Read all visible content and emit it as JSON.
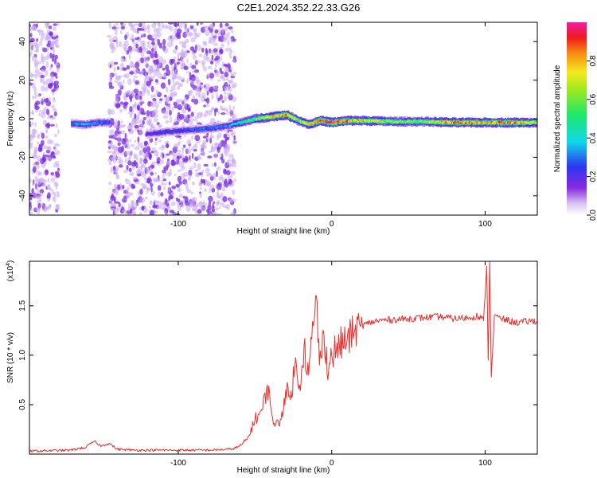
{
  "title": "C2E1.2024.352.22.33.G26",
  "colors": {
    "snr_line": "#e8302c",
    "axis": "#000000",
    "noise": "#7a2be0",
    "noise_light": "#c9a9f2"
  },
  "chart_data": [
    {
      "type": "heatmap",
      "xlabel": "Height of straight line (km)",
      "ylabel": "Frequency (Hz)",
      "xlim": [
        -197,
        134
      ],
      "ylim": [
        -50,
        50
      ],
      "x_ticks": [
        -100,
        0,
        100
      ],
      "x_tick_labels": [
        "-100",
        "0",
        "100"
      ],
      "y_ticks": [
        -40,
        -20,
        0,
        20,
        40
      ],
      "y_tick_labels": [
        "-40",
        "-20",
        "0",
        "20",
        "40"
      ],
      "colorbar": {
        "label": "Normalized spectral amplitude",
        "range": [
          0.0,
          1.0
        ],
        "ticks": [
          0.0,
          0.2,
          0.4,
          0.6,
          0.8
        ],
        "tick_labels": [
          "0.0",
          "0.2",
          "0.4",
          "0.6",
          "0.8"
        ],
        "colormap": "rainbow (white-purple-blue-cyan-green-yellow-red-magenta)"
      },
      "noise_regions": [
        [
          -197,
          -178
        ],
        [
          -145,
          -63
        ]
      ],
      "signal_ridge": {
        "x": [
          -170,
          -162,
          -152,
          -145,
          -122,
          -110,
          -95,
          -80,
          -70,
          -60,
          -50,
          -40,
          -30,
          -22,
          -15,
          -8,
          0,
          10,
          20,
          40,
          60,
          80,
          100,
          120,
          134
        ],
        "frequency": [
          -2.5,
          -3,
          -2,
          -2,
          -8,
          -7,
          -6,
          -5,
          -4,
          -2,
          0,
          1,
          2,
          -1,
          -3,
          -1,
          -2,
          -1,
          -1,
          -1.5,
          -1.5,
          -2,
          -2,
          -2,
          -2
        ],
        "amplitude": [
          0.3,
          0.35,
          0.3,
          0.25,
          0.2,
          0.25,
          0.25,
          0.3,
          0.3,
          0.45,
          0.6,
          0.75,
          0.85,
          0.6,
          0.75,
          0.9,
          0.95,
          0.85,
          0.75,
          0.6,
          0.6,
          0.85,
          0.8,
          0.85,
          0.6
        ]
      }
    },
    {
      "type": "line",
      "xlabel": "Height of straight line (km)",
      "ylabel": "SNR (10 * v/v)",
      "y_multiplier_label": "(x10",
      "y_multiplier_exp": "4",
      "xlim": [
        -197,
        134
      ],
      "ylim": [
        0,
        1.95
      ],
      "x_ticks": [
        -100,
        0,
        100
      ],
      "x_tick_labels": [
        "-100",
        "0",
        "100"
      ],
      "y_ticks": [
        0.5,
        1.0,
        1.5
      ],
      "y_tick_labels": [
        "0.5",
        "1.0",
        "1.5"
      ],
      "series": [
        {
          "x": [
            -197,
            -170,
            -160,
            -155,
            -150,
            -145,
            -140,
            -130,
            -100,
            -80,
            -65,
            -60,
            -55,
            -50,
            -45,
            -42,
            -40,
            -37,
            -33,
            -30,
            -27,
            -24,
            -21,
            -18,
            -15,
            -12,
            -10,
            -8,
            -5,
            -2,
            0,
            5,
            10,
            15,
            20,
            25,
            30,
            40,
            50,
            60,
            70,
            80,
            90,
            95,
            99,
            101,
            102,
            103,
            104,
            106,
            110,
            120,
            134
          ],
          "y": [
            0.03,
            0.04,
            0.07,
            0.13,
            0.08,
            0.11,
            0.05,
            0.04,
            0.04,
            0.04,
            0.05,
            0.08,
            0.15,
            0.35,
            0.45,
            0.7,
            0.5,
            0.28,
            0.35,
            0.65,
            0.55,
            0.9,
            0.7,
            1.1,
            0.8,
            1.3,
            1.6,
            0.9,
            1.2,
            0.85,
            1.0,
            1.1,
            1.15,
            1.25,
            1.3,
            1.33,
            1.35,
            1.36,
            1.37,
            1.38,
            1.39,
            1.37,
            1.38,
            1.4,
            1.35,
            1.9,
            0.95,
            1.95,
            0.78,
            1.4,
            1.37,
            1.33,
            1.35
          ]
        }
      ]
    }
  ]
}
